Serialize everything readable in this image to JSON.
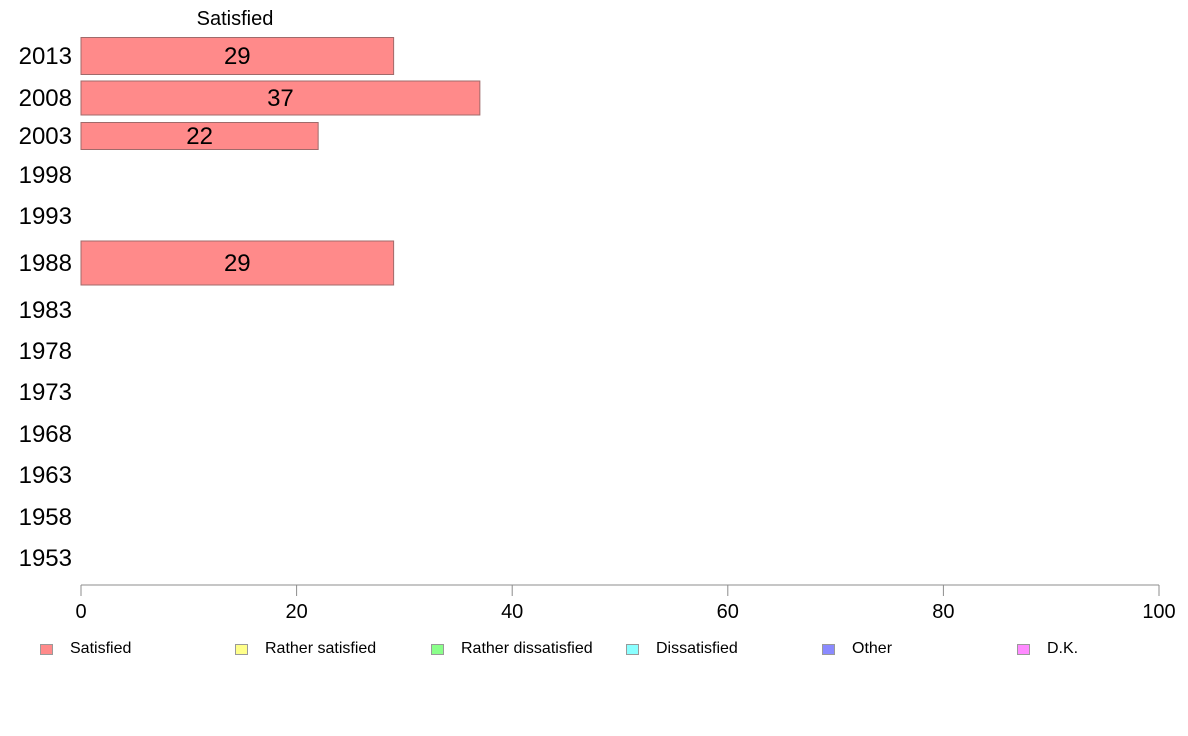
{
  "chart_data": {
    "type": "bar",
    "orientation": "horizontal",
    "stacked": true,
    "title": "Satisfied",
    "categories": [
      "2013",
      "2008",
      "2003",
      "1998",
      "1993",
      "1988",
      "1983",
      "1978",
      "1973",
      "1968",
      "1963",
      "1958",
      "1953"
    ],
    "series": [
      {
        "name": "Satisfied",
        "color": "#ff8a8a",
        "values": [
          29,
          37,
          22,
          null,
          null,
          29,
          null,
          null,
          null,
          null,
          null,
          null,
          null
        ]
      },
      {
        "name": "Rather satisfied",
        "color": "#ffff8a",
        "values": [
          null,
          null,
          null,
          null,
          null,
          null,
          null,
          null,
          null,
          null,
          null,
          null,
          null
        ]
      },
      {
        "name": "Rather dissatisfied",
        "color": "#8aff8a",
        "values": [
          null,
          null,
          null,
          null,
          null,
          null,
          null,
          null,
          null,
          null,
          null,
          null,
          null
        ]
      },
      {
        "name": "Dissatisfied",
        "color": "#8affff",
        "values": [
          null,
          null,
          null,
          null,
          null,
          null,
          null,
          null,
          null,
          null,
          null,
          null,
          null
        ]
      },
      {
        "name": "Other",
        "color": "#8a8aff",
        "values": [
          null,
          null,
          null,
          null,
          null,
          null,
          null,
          null,
          null,
          null,
          null,
          null,
          null
        ]
      },
      {
        "name": "D.K.",
        "color": "#ff8aff",
        "values": [
          null,
          null,
          null,
          null,
          null,
          null,
          null,
          null,
          null,
          null,
          null,
          null,
          null
        ]
      }
    ],
    "data_labels": [
      29,
      37,
      22,
      null,
      null,
      29,
      null,
      null,
      null,
      null,
      null,
      null,
      null
    ],
    "xlim": [
      0,
      100
    ],
    "xticks": [
      0,
      20,
      40,
      60,
      80,
      100
    ],
    "xlabel": "",
    "ylabel": "",
    "grid": false,
    "legend_position": "bottom"
  }
}
